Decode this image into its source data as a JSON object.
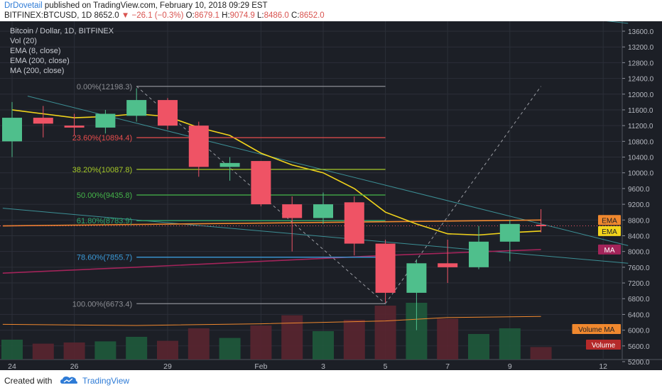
{
  "header": {
    "author": "DrDovetail",
    "published_text": "published on TradingView.com, February 10, 2018 09:29 EST",
    "symbol": "BITFINEX:BTCUSD, 1D",
    "last": "8652.0",
    "change": "−26.1 (−0.3%)",
    "o_label": "O:",
    "o_value": "8679.1",
    "h_label": "H:",
    "h_value": "9074.9",
    "l_label": "L:",
    "l_value": "8486.0",
    "c_label": "C:",
    "c_value": "8652.0"
  },
  "legend": {
    "title": "Bitcoin / Dollar, 1D, BITFINEX",
    "items": [
      "Vol (20)",
      "EMA (8, close)",
      "EMA (200, close)",
      "MA (200, close)"
    ]
  },
  "footer": {
    "created_with": "Created with",
    "brand": "TradingView"
  },
  "colors": {
    "up": "#4fbf8c",
    "down": "#ef5365",
    "ema8": "#f2d41b",
    "ema200": "#f0882e",
    "ma200": "#a3245a",
    "trend": "#3c8f95",
    "background": "#1c1f26",
    "grid": "#2b2f38"
  },
  "chart_data": {
    "type": "candlestick",
    "title": "Bitcoin / Dollar, 1D, BITFINEX",
    "ylim": [
      5200,
      13900
    ],
    "y_ticks": [
      5200,
      5600,
      6000,
      6400,
      6800,
      7200,
      7600,
      8000,
      8400,
      8800,
      9200,
      9600,
      10000,
      10400,
      10800,
      11200,
      11600,
      12000,
      12400,
      12800,
      13200,
      13600
    ],
    "y_tick_labels": [
      "5200.0",
      "5600.0",
      "6000.0",
      "6400.0",
      "6800.0",
      "7200.0",
      "7600.0",
      "8000.0",
      "8400.0",
      "8800.0",
      "9200.0",
      "9600.0",
      "10000.0",
      "10400.0",
      "10800.0",
      "11200.0",
      "11600.0",
      "12000.0",
      "12400.0",
      "12800.0",
      "13200.0",
      "13600.0"
    ],
    "x_tick_labels": [
      {
        "day": 0,
        "label": "24"
      },
      {
        "day": 2,
        "label": "26"
      },
      {
        "day": 5,
        "label": "29"
      },
      {
        "day": 8,
        "label": "Feb"
      },
      {
        "day": 10,
        "label": "3"
      },
      {
        "day": 12,
        "label": "5"
      },
      {
        "day": 14,
        "label": "7"
      },
      {
        "day": 16,
        "label": "9"
      },
      {
        "day": 19,
        "label": "12"
      }
    ],
    "candles": [
      {
        "day": 0,
        "o": 10800,
        "h": 11800,
        "l": 10400,
        "c": 11400
      },
      {
        "day": 1,
        "o": 11400,
        "h": 11700,
        "l": 10900,
        "c": 11250
      },
      {
        "day": 2,
        "o": 11200,
        "h": 11500,
        "l": 10950,
        "c": 11150
      },
      {
        "day": 3,
        "o": 11150,
        "h": 11600,
        "l": 11000,
        "c": 11500
      },
      {
        "day": 4,
        "o": 11450,
        "h": 12150,
        "l": 11300,
        "c": 11850
      },
      {
        "day": 5,
        "o": 11850,
        "h": 11900,
        "l": 11100,
        "c": 11200
      },
      {
        "day": 6,
        "o": 11200,
        "h": 11300,
        "l": 9900,
        "c": 10150
      },
      {
        "day": 7,
        "o": 10150,
        "h": 10400,
        "l": 9800,
        "c": 10250
      },
      {
        "day": 8,
        "o": 10300,
        "h": 10300,
        "l": 9150,
        "c": 9200
      },
      {
        "day": 9,
        "o": 9200,
        "h": 9400,
        "l": 8000,
        "c": 8850
      },
      {
        "day": 10,
        "o": 8850,
        "h": 9500,
        "l": 8700,
        "c": 9200
      },
      {
        "day": 11,
        "o": 9250,
        "h": 9400,
        "l": 7900,
        "c": 8200
      },
      {
        "day": 12,
        "o": 8200,
        "h": 8300,
        "l": 6700,
        "c": 6950
      },
      {
        "day": 13,
        "o": 6950,
        "h": 7800,
        "l": 6000,
        "c": 7700
      },
      {
        "day": 14,
        "o": 7700,
        "h": 8300,
        "l": 7200,
        "c": 7600
      },
      {
        "day": 15,
        "o": 7600,
        "h": 8650,
        "l": 7550,
        "c": 8250
      },
      {
        "day": 16,
        "o": 8250,
        "h": 8800,
        "l": 7750,
        "c": 8700
      },
      {
        "day": 17,
        "o": 8679.1,
        "h": 9074.9,
        "l": 8486.0,
        "c": 8652.0
      }
    ],
    "volume": [
      {
        "day": 0,
        "v": 0.35,
        "dir": "up"
      },
      {
        "day": 1,
        "v": 0.28,
        "dir": "down"
      },
      {
        "day": 2,
        "v": 0.3,
        "dir": "down"
      },
      {
        "day": 3,
        "v": 0.32,
        "dir": "up"
      },
      {
        "day": 4,
        "v": 0.4,
        "dir": "up"
      },
      {
        "day": 5,
        "v": 0.33,
        "dir": "down"
      },
      {
        "day": 6,
        "v": 0.55,
        "dir": "down"
      },
      {
        "day": 7,
        "v": 0.38,
        "dir": "up"
      },
      {
        "day": 8,
        "v": 0.6,
        "dir": "down"
      },
      {
        "day": 9,
        "v": 0.78,
        "dir": "down"
      },
      {
        "day": 10,
        "v": 0.5,
        "dir": "up"
      },
      {
        "day": 11,
        "v": 0.7,
        "dir": "down"
      },
      {
        "day": 12,
        "v": 0.95,
        "dir": "down"
      },
      {
        "day": 13,
        "v": 1.0,
        "dir": "up"
      },
      {
        "day": 14,
        "v": 0.72,
        "dir": "down"
      },
      {
        "day": 15,
        "v": 0.45,
        "dir": "up"
      },
      {
        "day": 16,
        "v": 0.55,
        "dir": "up"
      },
      {
        "day": 17,
        "v": 0.22,
        "dir": "down"
      }
    ],
    "volume_ma": [
      {
        "day": -0.3,
        "v": 0.62
      },
      {
        "day": 4,
        "v": 0.6
      },
      {
        "day": 8,
        "v": 0.63
      },
      {
        "day": 12,
        "v": 0.68
      },
      {
        "day": 14,
        "v": 0.74
      },
      {
        "day": 17,
        "v": 0.76
      }
    ],
    "ema8": [
      {
        "day": 0,
        "y": 11600
      },
      {
        "day": 1,
        "y": 11500
      },
      {
        "day": 2,
        "y": 11400
      },
      {
        "day": 3,
        "y": 11430
      },
      {
        "day": 4,
        "y": 11500
      },
      {
        "day": 5,
        "y": 11430
      },
      {
        "day": 6,
        "y": 11150
      },
      {
        "day": 7,
        "y": 10950
      },
      {
        "day": 8,
        "y": 10500
      },
      {
        "day": 9,
        "y": 10200
      },
      {
        "day": 10,
        "y": 10000
      },
      {
        "day": 11,
        "y": 9600
      },
      {
        "day": 12,
        "y": 9000
      },
      {
        "day": 13,
        "y": 8700
      },
      {
        "day": 14,
        "y": 8450
      },
      {
        "day": 15,
        "y": 8420
      },
      {
        "day": 16,
        "y": 8480
      },
      {
        "day": 17,
        "y": 8520
      }
    ],
    "ema200": [
      {
        "day": -0.3,
        "y": 8650
      },
      {
        "day": 17,
        "y": 8800
      }
    ],
    "ma200": [
      {
        "day": -0.3,
        "y": 7450
      },
      {
        "day": 4,
        "y": 7600
      },
      {
        "day": 8,
        "y": 7750
      },
      {
        "day": 12,
        "y": 7900
      },
      {
        "day": 17,
        "y": 8050
      }
    ],
    "trendlines": [
      {
        "x1": 0.5,
        "y1": 11950,
        "x2": 19.8,
        "y2": 8150
      },
      {
        "x1": -0.3,
        "y1": 9100,
        "x2": 19.8,
        "y2": 7700
      },
      {
        "x1": 17.5,
        "y1": 14000,
        "x2": 19.8,
        "y2": 13800
      }
    ],
    "dashed_lines": [
      {
        "x1": 4,
        "y1": 12200,
        "x2": 12,
        "y2": 6673.4
      },
      {
        "x1": 12,
        "y1": 6673.4,
        "x2": 17,
        "y2": 12200
      }
    ],
    "fibonacci": [
      {
        "label": "0.00%(12198.3)",
        "price": 12198.3,
        "color": "#8d8f95"
      },
      {
        "label": "23.60%(10894.4)",
        "price": 10894.4,
        "color": "#e84d4d"
      },
      {
        "label": "38.20%(10087.8)",
        "price": 10087.8,
        "color": "#a6c928"
      },
      {
        "label": "50.00%(9435.8)",
        "price": 9435.8,
        "color": "#45b64a"
      },
      {
        "label": "61.80%(8783.9)",
        "price": 8783.9,
        "color": "#2ea86a"
      },
      {
        "label": "78.60%(7855.7)",
        "price": 7855.7,
        "color": "#3b9ad9"
      },
      {
        "label": "100.00%(6673.4)",
        "price": 6673.4,
        "color": "#8d8f95"
      }
    ],
    "axis_badges": [
      {
        "label": "EMA",
        "price": 8800,
        "bg": "#f0882e",
        "fg": "#1c1f26"
      },
      {
        "label": "EMA",
        "price": 8520,
        "bg": "#f2d41b",
        "fg": "#1c1f26"
      },
      {
        "label": "MA",
        "price": 8050,
        "bg": "#a3245a",
        "fg": "#ffffff"
      }
    ],
    "pane_labels": [
      {
        "label": "Volume MA",
        "row": 0,
        "bg": "#f0882e",
        "fg": "#1c1f26"
      },
      {
        "label": "Volume",
        "row": 1,
        "bg": "#b52a2a",
        "fg": "#ffffff"
      }
    ],
    "last_price": 8652.0
  }
}
